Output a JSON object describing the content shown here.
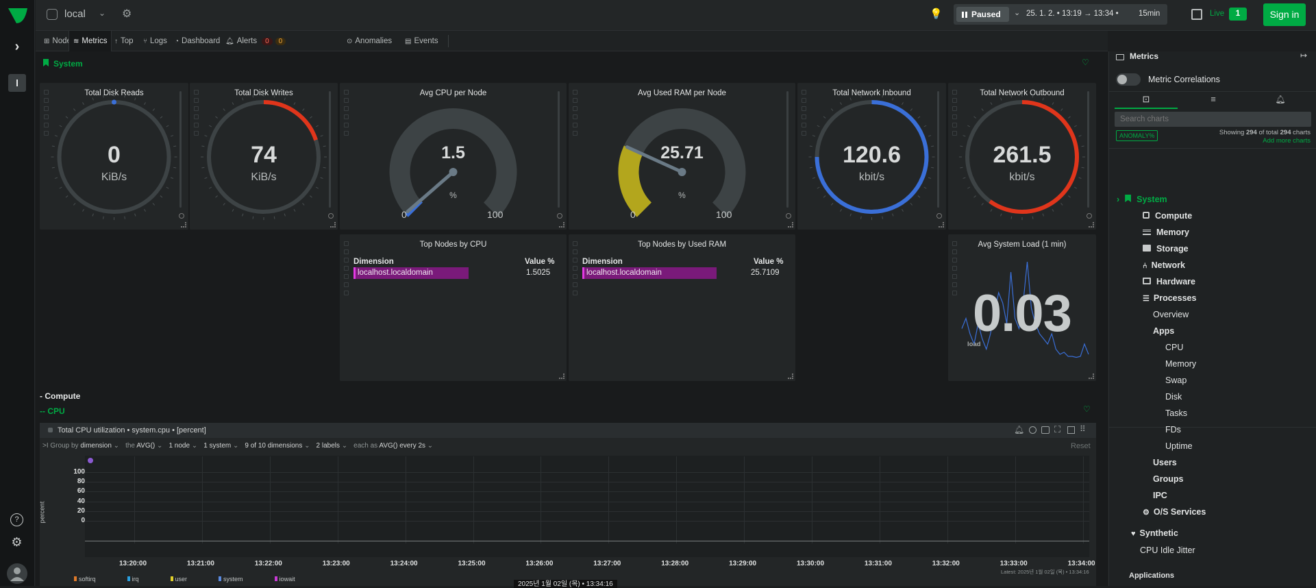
{
  "topbar": {
    "space_name": "local",
    "status": "Paused",
    "date_range": "25. 1. 2. • 13:19 → 13:34 •",
    "duration": "15min",
    "live_label": "Live",
    "live_count": "1",
    "sign_in": "Sign in"
  },
  "tabs": [
    {
      "label": "Nodes"
    },
    {
      "label": "Metrics"
    },
    {
      "label": "Top"
    },
    {
      "label": "Logs"
    },
    {
      "label": "Dashboard"
    },
    {
      "label": "Alerts",
      "badge_critical": "0",
      "badge_warning": "0"
    },
    {
      "label": "Anomalies"
    },
    {
      "label": "Events"
    }
  ],
  "section": {
    "title": "System",
    "compute": "- Compute",
    "cpu": "-- CPU"
  },
  "gauges": [
    {
      "title": "Total Disk Reads",
      "value": "0",
      "unit": "KiB/s",
      "fraction": 0.0
    },
    {
      "title": "Total Disk Writes",
      "value": "74",
      "unit": "KiB/s",
      "fraction": 0.2
    },
    {
      "title": "Avg CPU per Node",
      "value": "1.5",
      "unit": "%",
      "min": "0",
      "max": "100",
      "fraction": 0.015
    },
    {
      "title": "Avg Used RAM per Node",
      "value": "25.71",
      "unit": "%",
      "min": "0",
      "max": "100",
      "fraction": 0.2571
    },
    {
      "title": "Total Network Inbound",
      "value": "120.6",
      "unit": "kbit/s",
      "fraction": 0.75
    },
    {
      "title": "Total Network Outbound",
      "value": "261.5",
      "unit": "kbit/s",
      "fraction": 0.6
    }
  ],
  "top_cpu": {
    "title": "Top Nodes by CPU",
    "col_dim": "Dimension",
    "col_val": "Value %",
    "row_name": "localhost.localdomain",
    "row_value": "1.5025",
    "fraction": 0.42
  },
  "top_ram": {
    "title": "Top Nodes by Used RAM",
    "col_dim": "Dimension",
    "col_val": "Value %",
    "row_name": "localhost.localdomain",
    "row_value": "25.7109",
    "fraction": 0.49
  },
  "load": {
    "title": "Avg System Load (1 min)",
    "value": "0.03",
    "label": "load",
    "series": [
      0.35,
      0.45,
      0.3,
      0.2,
      0.4,
      0.25,
      0.15,
      0.3,
      0.5,
      0.7,
      0.6,
      0.4,
      0.9,
      0.45,
      0.35,
      0.6,
      1.0,
      0.55,
      0.4,
      0.3,
      0.25,
      0.2,
      0.3,
      0.15,
      0.1,
      0.12,
      0.08,
      0.08,
      0.07,
      0.08,
      0.2,
      0.1
    ]
  },
  "cpu_chart": {
    "title": "Total CPU utilization • system.cpu • [percent]",
    "controls": [
      {
        "prefix": ">I Group by",
        "value": "dimension"
      },
      {
        "prefix": "the",
        "value": "AVG()"
      },
      {
        "prefix": "",
        "value": "1 node"
      },
      {
        "prefix": "",
        "value": "1 system"
      },
      {
        "prefix": "",
        "value": "9 of 10 dimensions"
      },
      {
        "prefix": "",
        "value": "2 labels"
      },
      {
        "prefix": "each as",
        "value": "AVG() every 2s"
      }
    ],
    "reset": "Reset",
    "ylabel": "percent",
    "yticks": [
      "100",
      "80",
      "60",
      "40",
      "20",
      "0"
    ],
    "xticks": [
      "13:20:00",
      "13:21:00",
      "13:22:00",
      "13:23:00",
      "13:24:00",
      "13:25:00",
      "13:26:00",
      "13:27:00",
      "13:28:00",
      "13:29:00",
      "13:30:00",
      "13:31:00",
      "13:32:00",
      "13:33:00",
      "13:34:00"
    ],
    "latest": "Latest: 2025년 1월 02일 (목) • 13:34:16",
    "legend": [
      "softirq",
      "irq",
      "user",
      "system",
      "iowait"
    ],
    "timestamp": "2025년 1월 02일 (목) • 13:34:16"
  },
  "rpanel": {
    "title": "Metrics",
    "correlations": "Metric Correlations",
    "search_placeholder": "Search charts",
    "anomaly": "ANOMALY%",
    "showing_prefix": "Showing",
    "shown_count": "294",
    "showing_mid": "of total",
    "total_count": "294",
    "showing_suffix": "charts",
    "add_more": "Add more charts",
    "tree": {
      "system": "System",
      "compute": "Compute",
      "memory": "Memory",
      "storage": "Storage",
      "network": "Network",
      "hardware": "Hardware",
      "processes": "Processes",
      "overview": "Overview",
      "apps": "Apps",
      "cpu": "CPU",
      "mem": "Memory",
      "swap": "Swap",
      "disk": "Disk",
      "tasks": "Tasks",
      "fds": "FDs",
      "uptime": "Uptime",
      "users": "Users",
      "groups": "Groups",
      "ipc": "IPC",
      "os_services": "O/S Services",
      "synthetic": "Synthetic",
      "cpu_idle_jitter": "CPU Idle Jitter",
      "applications": "Applications"
    }
  },
  "colors": {
    "accent": "#00ab44",
    "blue": "#3a6fd8",
    "red": "#e0351b",
    "yellow": "#b3a61d",
    "magenta": "#c31fc3"
  }
}
